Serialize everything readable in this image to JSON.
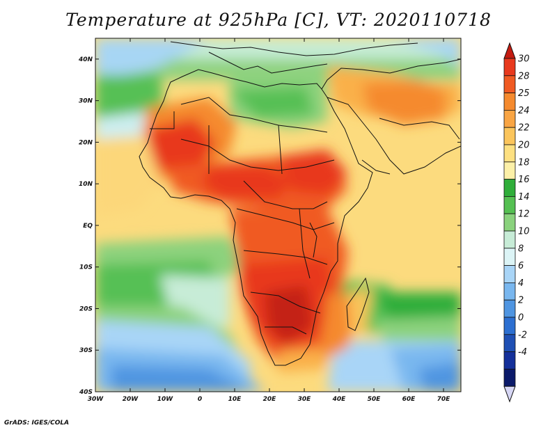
{
  "title": "Temperature at 925hPa [C], VT: 2020110718",
  "credit": "GrADS: IGES/COLA",
  "map": {
    "lon_range": [
      -30,
      75
    ],
    "lat_range": [
      -40,
      45
    ],
    "lon_ticks": [
      "30W",
      "20W",
      "10W",
      "0",
      "10E",
      "20E",
      "30E",
      "40E",
      "50E",
      "60E",
      "70E"
    ],
    "lat_ticks": [
      "40N",
      "30N",
      "20N",
      "10N",
      "EQ",
      "10S",
      "20S",
      "30S",
      "40S"
    ],
    "field": "Temperature at 925hPa",
    "units": "C"
  },
  "colorbar": {
    "labels": [
      "30",
      "28",
      "25",
      "24",
      "22",
      "20",
      "18",
      "16",
      "14",
      "12",
      "10",
      "8",
      "6",
      "4",
      "2",
      "0",
      "-2",
      "-4"
    ],
    "colors": [
      "#e8391d",
      "#f05a22",
      "#f58a2e",
      "#f9a544",
      "#fbc55c",
      "#fde081",
      "#fcf0a8",
      "#2fae3a",
      "#55c052",
      "#8ad27d",
      "#c7ecd7",
      "#dcf4f6",
      "#a9d5f7",
      "#79b7ef",
      "#4f95e1",
      "#2c6fd1",
      "#1e4fb4",
      "#14309a",
      "#0b1a6a"
    ],
    "end_colors": {
      "top": "#c41b11",
      "bottom": "#d7d7f5"
    }
  }
}
